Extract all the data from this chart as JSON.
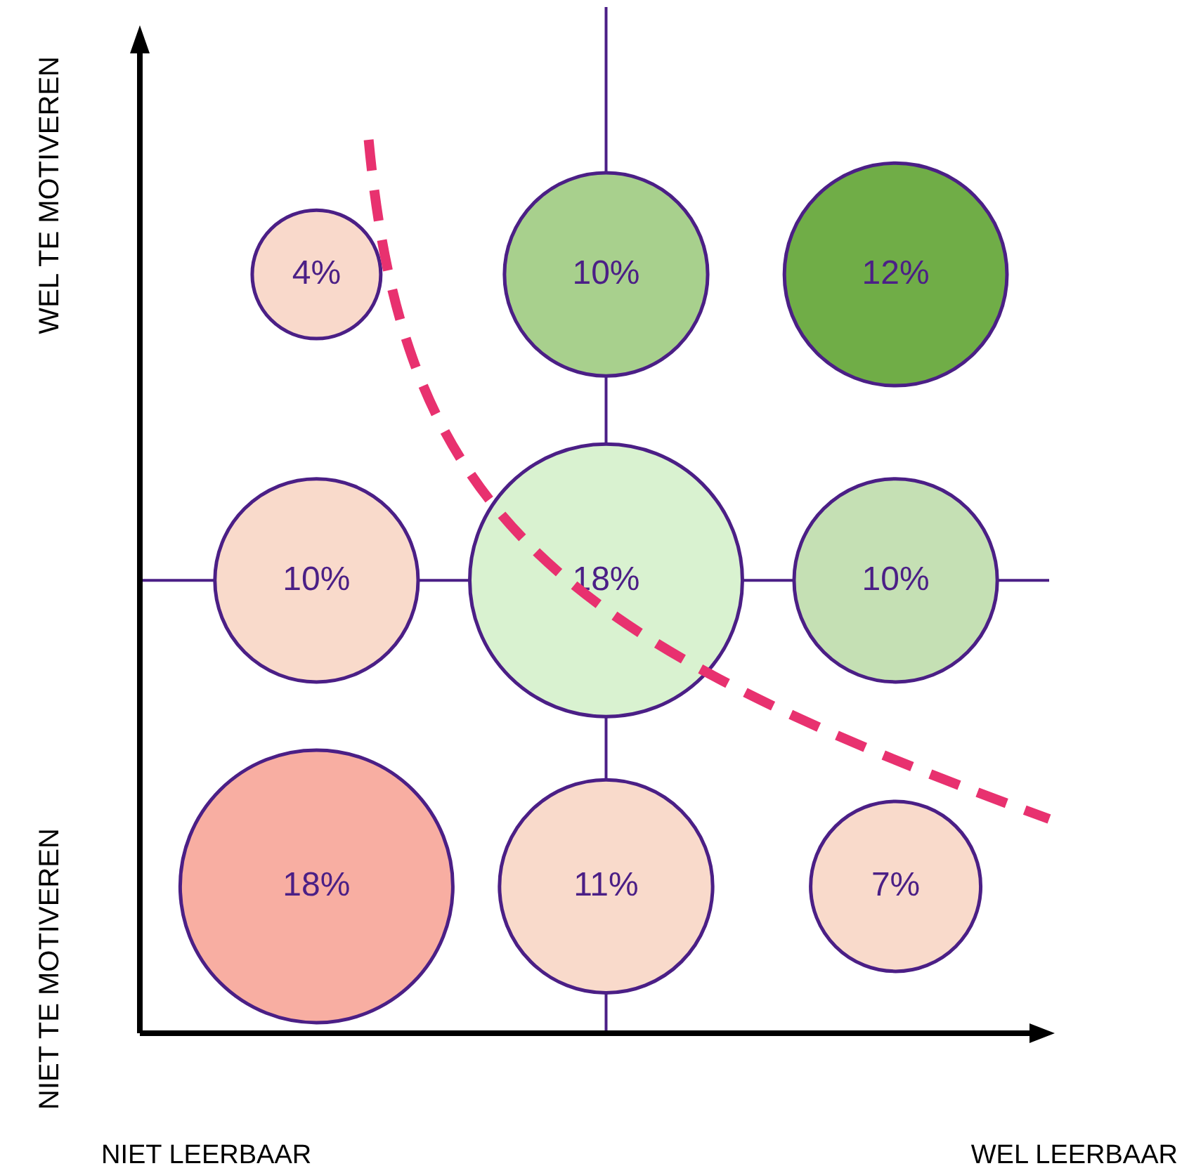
{
  "chart_data": {
    "type": "other",
    "legend": false,
    "annotations": [
      "NIET LEERBAAR",
      "WEL LEERBAAR",
      "WEL TE MOTIVEREN",
      "NIET TE MOTIVEREN"
    ],
    "values": [
      4,
      10,
      12,
      10,
      18,
      10,
      18,
      11,
      7
    ],
    "value_labels": [
      "4%",
      "10%",
      "12%",
      "10%",
      "18%",
      "10%",
      "18%",
      "11%",
      "7%"
    ],
    "colors": [
      "#f9d9cb",
      "#a8d08d",
      "#70ad47",
      "#f9dacb",
      "#d9f2d0",
      "#c5e0b4",
      "#f8aea2",
      "#f9dacb",
      "#f9dacb"
    ]
  }
}
